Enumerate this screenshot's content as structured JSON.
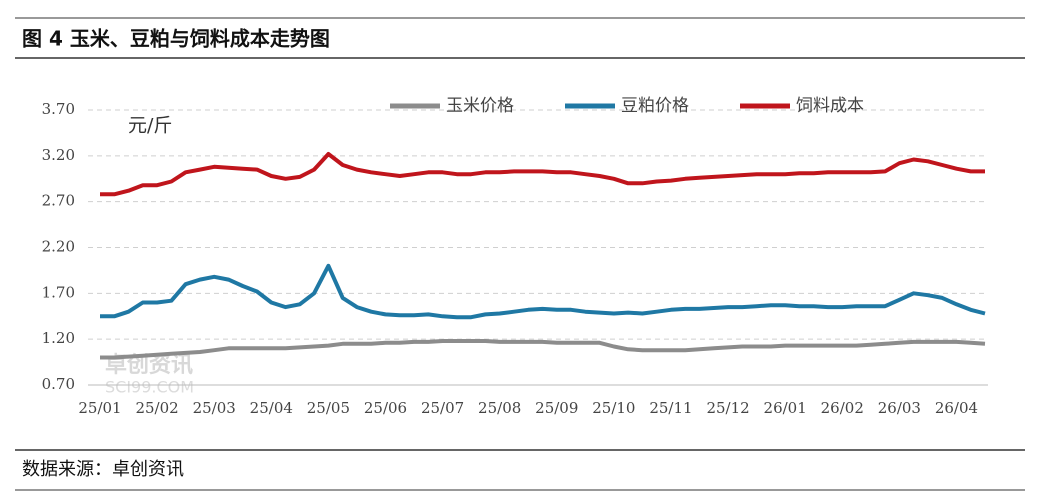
{
  "chart_data": {
    "type": "line",
    "title": "图 4 玉米、豆粕与饲料成本走势图",
    "unit_label": "元/斤",
    "source": "数据来源：卓创资讯",
    "watermark": "卓创资讯",
    "watermark_sub": "SCI99.COM",
    "categories": [
      "25/01",
      null,
      null,
      null,
      "25/02",
      null,
      null,
      null,
      "25/03",
      null,
      null,
      null,
      "25/04",
      null,
      null,
      null,
      "25/05",
      null,
      null,
      null,
      "25/06",
      null,
      null,
      null,
      "25/07",
      null,
      null,
      null,
      "25/08",
      null,
      null,
      null,
      "25/09",
      null,
      null,
      null,
      "25/10",
      null,
      null,
      null,
      "25/11",
      null,
      null,
      null,
      "25/12",
      null,
      null,
      null,
      "26/01",
      null,
      null,
      null,
      "26/02",
      null,
      null,
      null,
      "26/03",
      null,
      null,
      null,
      "26/04",
      null,
      null
    ],
    "series": [
      {
        "name": "玉米价格",
        "color": "#8c8c8c",
        "values": [
          1.0,
          1.0,
          1.01,
          1.02,
          1.03,
          1.04,
          1.05,
          1.06,
          1.08,
          1.1,
          1.1,
          1.1,
          1.1,
          1.1,
          1.11,
          1.12,
          1.13,
          1.15,
          1.15,
          1.15,
          1.16,
          1.16,
          1.17,
          1.17,
          1.18,
          1.18,
          1.18,
          1.18,
          1.17,
          1.17,
          1.17,
          1.17,
          1.16,
          1.16,
          1.16,
          1.16,
          1.12,
          1.09,
          1.08,
          1.08,
          1.08,
          1.08,
          1.09,
          1.1,
          1.11,
          1.12,
          1.12,
          1.12,
          1.13,
          1.13,
          1.13,
          1.13,
          1.13,
          1.13,
          1.14,
          1.15,
          1.16,
          1.17,
          1.17,
          1.17,
          1.17,
          1.16,
          1.15
        ]
      },
      {
        "name": "豆粕价格",
        "color": "#1f78a4",
        "values": [
          1.45,
          1.45,
          1.5,
          1.6,
          1.6,
          1.62,
          1.8,
          1.85,
          1.88,
          1.85,
          1.78,
          1.72,
          1.6,
          1.55,
          1.58,
          1.7,
          2.0,
          1.65,
          1.55,
          1.5,
          1.47,
          1.46,
          1.46,
          1.47,
          1.45,
          1.44,
          1.44,
          1.47,
          1.48,
          1.5,
          1.52,
          1.53,
          1.52,
          1.52,
          1.5,
          1.49,
          1.48,
          1.49,
          1.48,
          1.5,
          1.52,
          1.53,
          1.53,
          1.54,
          1.55,
          1.55,
          1.56,
          1.57,
          1.57,
          1.56,
          1.56,
          1.55,
          1.55,
          1.56,
          1.56,
          1.56,
          1.63,
          1.7,
          1.68,
          1.65,
          1.58,
          1.52,
          1.48
        ]
      },
      {
        "name": "饲料成本",
        "color": "#c0151c",
        "values": [
          2.78,
          2.78,
          2.82,
          2.88,
          2.88,
          2.92,
          3.02,
          3.05,
          3.08,
          3.07,
          3.06,
          3.05,
          2.98,
          2.95,
          2.97,
          3.05,
          3.22,
          3.1,
          3.05,
          3.02,
          3.0,
          2.98,
          3.0,
          3.02,
          3.02,
          3.0,
          3.0,
          3.02,
          3.02,
          3.03,
          3.03,
          3.03,
          3.02,
          3.02,
          3.0,
          2.98,
          2.95,
          2.9,
          2.9,
          2.92,
          2.93,
          2.95,
          2.96,
          2.97,
          2.98,
          2.99,
          3.0,
          3.0,
          3.0,
          3.01,
          3.01,
          3.02,
          3.02,
          3.02,
          3.02,
          3.03,
          3.12,
          3.16,
          3.14,
          3.1,
          3.06,
          3.03,
          3.03
        ]
      }
    ],
    "ylim": [
      0.7,
      3.7
    ],
    "yticks": [
      {
        "value": 0.7,
        "label": "0.70"
      },
      {
        "value": 1.2,
        "label": "1.20"
      },
      {
        "value": 1.7,
        "label": "1.70"
      },
      {
        "value": 2.2,
        "label": "2.20"
      },
      {
        "value": 2.7,
        "label": "2.70"
      },
      {
        "value": 3.2,
        "label": "3.20"
      },
      {
        "value": 3.7,
        "label": "3.70"
      }
    ],
    "grid": true
  }
}
